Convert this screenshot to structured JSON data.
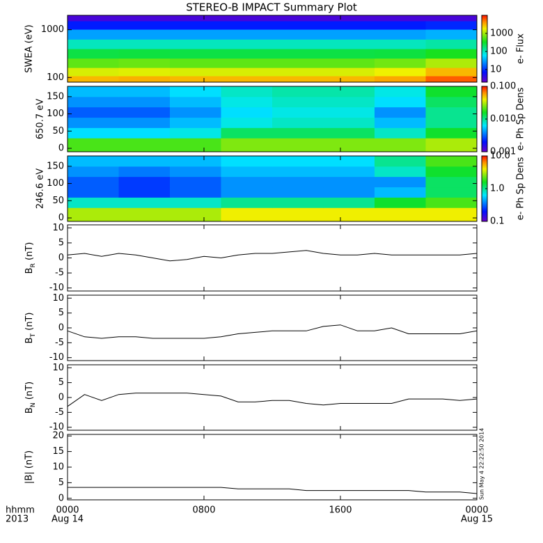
{
  "title": "STEREO-B IMPACT Summary Plot",
  "time_label": "hhmm",
  "year_label": "2013",
  "date_labels": [
    "Aug 14",
    "Aug 15"
  ],
  "timestamp": "Sun May  4 22:22:50 2014",
  "chart_data": [
    {
      "type": "heatmap",
      "ylabel": "SWEA (eV)",
      "ylog": true,
      "ylim": [
        80,
        2000
      ],
      "yticks": [
        100,
        1000
      ],
      "xlim": [
        0,
        24
      ],
      "xticks": [
        {
          "value": 0,
          "label": "0000"
        },
        {
          "value": 8,
          "label": "0800"
        },
        {
          "value": 16,
          "label": "1600"
        },
        {
          "value": 24,
          "label": "0000"
        }
      ],
      "x": [
        1.5,
        4.5,
        7.5,
        10.5,
        13.5,
        16.5,
        19.5,
        22.5
      ],
      "y": [
        90,
        130,
        200,
        320,
        500,
        800,
        1300,
        1800
      ],
      "z": [
        [
          3000,
          3200,
          3000,
          3000,
          3000,
          3000,
          3500,
          6000
        ],
        [
          1500,
          1600,
          1500,
          1500,
          1500,
          1500,
          1800,
          3000
        ],
        [
          600,
          650,
          600,
          600,
          600,
          600,
          700,
          1100
        ],
        [
          250,
          260,
          250,
          250,
          250,
          250,
          260,
          350
        ],
        [
          100,
          100,
          100,
          100,
          100,
          100,
          100,
          120
        ],
        [
          30,
          30,
          30,
          30,
          30,
          30,
          30,
          35
        ],
        [
          8,
          8,
          8,
          8,
          8,
          8,
          8,
          9
        ],
        [
          3,
          3,
          3,
          3,
          3,
          3,
          3,
          3
        ]
      ],
      "zlog": true,
      "zlim": [
        2,
        10000
      ],
      "zticks": [
        10,
        100,
        1000
      ],
      "zlabel": "e- Flux"
    },
    {
      "type": "heatmap",
      "ylabel": "650.7 eV",
      "ylog": false,
      "ylim": [
        -10,
        180
      ],
      "yticks": [
        0,
        50,
        100,
        150
      ],
      "xlim": [
        0,
        24
      ],
      "xticks": [
        {
          "value": 0,
          "label": "0000"
        },
        {
          "value": 8,
          "label": "0800"
        },
        {
          "value": 16,
          "label": "1600"
        },
        {
          "value": 24,
          "label": "0000"
        }
      ],
      "x": [
        1.5,
        4.5,
        7.5,
        10.5,
        13.5,
        16.5,
        19.5,
        22.5
      ],
      "y": [
        15,
        45,
        75,
        105,
        135,
        165
      ],
      "z": [
        [
          0.02,
          0.02,
          0.02,
          0.025,
          0.025,
          0.025,
          0.025,
          0.03
        ],
        [
          0.006,
          0.006,
          0.007,
          0.012,
          0.012,
          0.012,
          0.008,
          0.015
        ],
        [
          0.004,
          0.004,
          0.005,
          0.007,
          0.008,
          0.008,
          0.005,
          0.01
        ],
        [
          0.003,
          0.003,
          0.004,
          0.006,
          0.007,
          0.007,
          0.004,
          0.01
        ],
        [
          0.004,
          0.004,
          0.005,
          0.007,
          0.008,
          0.008,
          0.006,
          0.012
        ],
        [
          0.005,
          0.005,
          0.006,
          0.008,
          0.009,
          0.009,
          0.007,
          0.015
        ]
      ],
      "zlog": true,
      "zlim": [
        0.001,
        0.1
      ],
      "zticks": [
        0.001,
        {
          "value": 0.01,
          "label": "0.010"
        },
        {
          "value": 0.1,
          "label": "0.100"
        }
      ],
      "zlabel": "e- Ph Sp Dens"
    },
    {
      "type": "heatmap",
      "ylabel": "246.6 eV",
      "ylog": false,
      "ylim": [
        -10,
        180
      ],
      "yticks": [
        0,
        50,
        100,
        150
      ],
      "xlim": [
        0,
        24
      ],
      "xticks": [
        {
          "value": 0,
          "label": "0000"
        },
        {
          "value": 8,
          "label": "0800"
        },
        {
          "value": 16,
          "label": "1600"
        },
        {
          "value": 24,
          "label": "0000"
        }
      ],
      "x": [
        1.5,
        4.5,
        7.5,
        10.5,
        13.5,
        16.5,
        19.5,
        22.5
      ],
      "y": [
        15,
        45,
        75,
        105,
        135,
        165
      ],
      "z": [
        [
          3,
          3,
          3,
          4,
          4,
          4,
          4,
          4
        ],
        [
          0.8,
          0.8,
          0.8,
          1,
          1,
          1,
          1.5,
          2
        ],
        [
          0.3,
          0.25,
          0.3,
          0.4,
          0.4,
          0.4,
          0.5,
          1.2
        ],
        [
          0.3,
          0.25,
          0.3,
          0.4,
          0.4,
          0.4,
          0.4,
          1.2
        ],
        [
          0.4,
          0.35,
          0.4,
          0.5,
          0.5,
          0.5,
          0.8,
          1.5
        ],
        [
          0.5,
          0.5,
          0.5,
          0.6,
          0.6,
          0.6,
          1,
          2
        ]
      ],
      "zlog": true,
      "zlim": [
        0.1,
        10
      ],
      "zticks": [
        0.1,
        {
          "value": 1,
          "label": "1.0"
        },
        {
          "value": 10,
          "label": "10.0"
        }
      ],
      "zlabel": "e- Ph Sp Dens"
    },
    {
      "type": "line",
      "ylabel": {
        "main": "B",
        "sub": "R",
        "rest": " (nT)"
      },
      "ylim": [
        -11,
        11
      ],
      "yticks": [
        -10,
        -5,
        0,
        5,
        10
      ],
      "xlim": [
        0,
        24
      ],
      "xticks": [
        {
          "value": 0,
          "label": "0000"
        },
        {
          "value": 8,
          "label": "0800"
        },
        {
          "value": 16,
          "label": "1600"
        },
        {
          "value": 24,
          "label": "0000"
        }
      ],
      "color": "#000000",
      "x": [
        0,
        1,
        2,
        3,
        4,
        5,
        6,
        7,
        8,
        9,
        10,
        11,
        12,
        13,
        14,
        15,
        16,
        17,
        18,
        19,
        20,
        21,
        22,
        23,
        24
      ],
      "values": [
        1,
        1.5,
        0.5,
        1.5,
        1,
        0,
        -1,
        -0.5,
        0.5,
        0,
        1,
        1.5,
        1.5,
        2,
        2.5,
        1.5,
        1,
        1,
        1.5,
        1,
        1,
        1,
        1,
        1,
        1.5
      ]
    },
    {
      "type": "line",
      "ylabel": {
        "main": "B",
        "sub": "T",
        "rest": " (nT)"
      },
      "ylim": [
        -11,
        11
      ],
      "yticks": [
        -10,
        -5,
        0,
        5,
        10
      ],
      "xlim": [
        0,
        24
      ],
      "xticks": [
        {
          "value": 0,
          "label": "0000"
        },
        {
          "value": 8,
          "label": "0800"
        },
        {
          "value": 16,
          "label": "1600"
        },
        {
          "value": 24,
          "label": "0000"
        }
      ],
      "color": "#000000",
      "x": [
        0,
        1,
        2,
        3,
        4,
        5,
        6,
        7,
        8,
        9,
        10,
        11,
        12,
        13,
        14,
        15,
        16,
        17,
        18,
        19,
        20,
        21,
        22,
        23,
        24
      ],
      "values": [
        -1,
        -3,
        -3.5,
        -3,
        -3,
        -3.5,
        -3.5,
        -3.5,
        -3.5,
        -3,
        -2,
        -1.5,
        -1,
        -1,
        -1,
        0.5,
        1,
        -1,
        -1,
        0,
        -2,
        -2,
        -2,
        -2,
        -1
      ]
    },
    {
      "type": "line",
      "ylabel": {
        "main": "B",
        "sub": "N",
        "rest": " (nT)"
      },
      "ylim": [
        -11,
        11
      ],
      "yticks": [
        -10,
        -5,
        0,
        5,
        10
      ],
      "xlim": [
        0,
        24
      ],
      "xticks": [
        {
          "value": 0,
          "label": "0000"
        },
        {
          "value": 8,
          "label": "0800"
        },
        {
          "value": 16,
          "label": "1600"
        },
        {
          "value": 24,
          "label": "0000"
        }
      ],
      "color": "#000000",
      "x": [
        0,
        1,
        2,
        3,
        4,
        5,
        6,
        7,
        8,
        9,
        10,
        11,
        12,
        13,
        14,
        15,
        16,
        17,
        18,
        19,
        20,
        21,
        22,
        23,
        24
      ],
      "values": [
        -3,
        1,
        -1,
        1,
        1.5,
        1.5,
        1.5,
        1.5,
        1,
        0.5,
        -1.5,
        -1.5,
        -1,
        -1,
        -2,
        -2.5,
        -2,
        -2,
        -2,
        -2,
        -0.5,
        -0.5,
        -0.5,
        -1,
        -0.5
      ]
    },
    {
      "type": "line",
      "ylabel": "|B| (nT)",
      "ylim": [
        -0.5,
        20.5
      ],
      "yticks": [
        0,
        5,
        10,
        15,
        20
      ],
      "xlim": [
        0,
        24
      ],
      "xticks": [
        {
          "value": 0,
          "label": "0000"
        },
        {
          "value": 8,
          "label": "0800"
        },
        {
          "value": 16,
          "label": "1600"
        },
        {
          "value": 24,
          "label": "0000"
        }
      ],
      "color": "#000000",
      "x": [
        0,
        1,
        2,
        3,
        4,
        5,
        6,
        7,
        8,
        9,
        10,
        11,
        12,
        13,
        14,
        15,
        16,
        17,
        18,
        19,
        20,
        21,
        22,
        23,
        24
      ],
      "values": [
        3.5,
        3.5,
        3.5,
        3.5,
        3.5,
        3.5,
        3.5,
        3.5,
        3.5,
        3.5,
        3,
        3,
        3,
        3,
        2.5,
        2.5,
        2.5,
        2.5,
        2.5,
        2.5,
        2.5,
        2,
        2,
        2,
        1.5
      ]
    }
  ]
}
